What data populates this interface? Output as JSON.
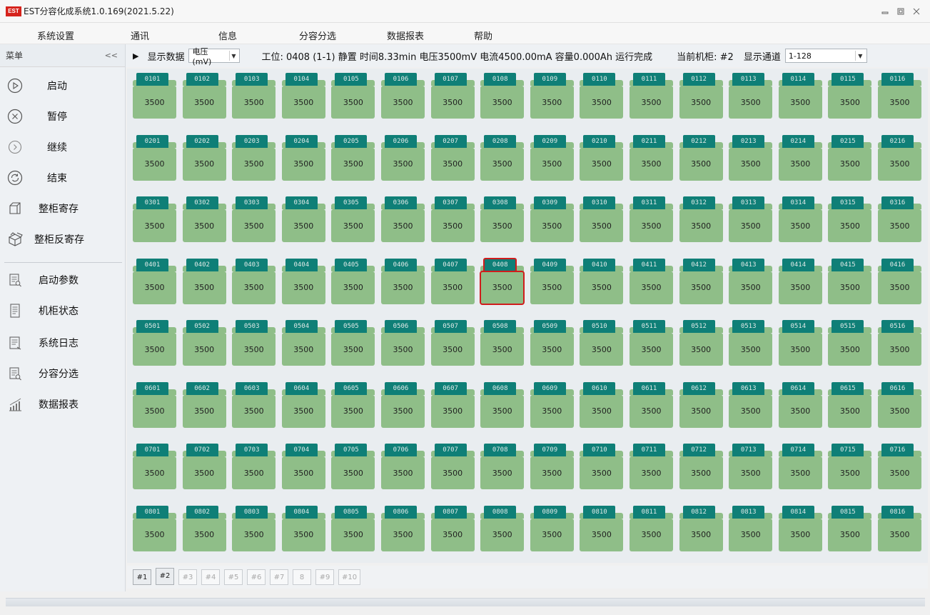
{
  "window": {
    "logo": "EST",
    "title": "EST分容化成系统1.0.169(2021.5.22)",
    "controls": [
      "minimize-icon",
      "restore-icon",
      "close-icon"
    ]
  },
  "menu": {
    "items": [
      "系统设置",
      "通讯",
      "信息",
      "分容分选",
      "数据报表",
      "帮助"
    ]
  },
  "sidebar": {
    "header": "菜单",
    "collapse": "<<",
    "items": [
      {
        "label": "启动",
        "icon": "play-circle-icon"
      },
      {
        "label": "暂停",
        "icon": "x-circle-icon"
      },
      {
        "label": "继续",
        "icon": "chevron-circle-icon"
      },
      {
        "label": "结束",
        "icon": "refresh-circle-icon"
      },
      {
        "label": "整柜寄存",
        "icon": "cabinet-icon"
      },
      {
        "label": "整柜反寄存",
        "icon": "box-icon"
      },
      {
        "label": "启动参数",
        "icon": "document-search-icon"
      },
      {
        "label": "机柜状态",
        "icon": "document-list-icon"
      },
      {
        "label": "系统日志",
        "icon": "log-icon"
      },
      {
        "label": "分容分选",
        "icon": "document-search-icon"
      },
      {
        "label": "数据报表",
        "icon": "bar-chart-icon"
      }
    ]
  },
  "infobar": {
    "arrow": "▶",
    "display_label": "显示数据",
    "display_select": "电压(mV)",
    "status": "工位: 0408   (1-1) 静置 时间8.33min 电压3500mV 电流4500.00mA 容量0.000Ah 运行完成",
    "cabinet": "当前机柜: #2",
    "channel_label": "显示通道",
    "channel_select": "1-128"
  },
  "grid": {
    "rows": 8,
    "cols": 16,
    "value": "3500",
    "selected": "0408",
    "colors": {
      "tab": "#0f7f77",
      "body": "#8fbe88",
      "selected": "#d01c1c"
    }
  },
  "pager": {
    "pages": [
      "#1",
      "#2",
      "#3",
      "#4",
      "#5",
      "#6",
      "#7",
      "8",
      "#9",
      "#10"
    ],
    "enabled": [
      "#1",
      "#2"
    ]
  }
}
